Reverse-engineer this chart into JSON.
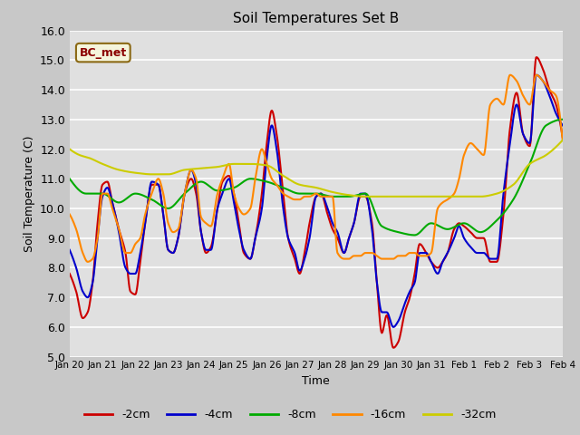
{
  "title": "Soil Temperatures Set B",
  "xlabel": "Time",
  "ylabel": "Soil Temperature (C)",
  "ylim": [
    5.0,
    16.0
  ],
  "yticks": [
    5.0,
    6.0,
    7.0,
    8.0,
    9.0,
    10.0,
    11.0,
    12.0,
    13.0,
    14.0,
    15.0,
    16.0
  ],
  "xtick_labels": [
    "Jan 20",
    "Jan 21",
    "Jan 22",
    "Jan 23",
    "Jan 24",
    "Jan 25",
    "Jan 26",
    "Jan 27",
    "Jan 28",
    "Jan 29",
    "Jan 30",
    "Jan 31",
    "Feb 1",
    "Feb 2",
    "Feb 3",
    "Feb 4"
  ],
  "annotation_text": "BC_met",
  "fig_bg": "#c8c8c8",
  "plot_bg": "#e0e0e0",
  "grid_color": "#ffffff",
  "series": {
    "neg2cm": {
      "color": "#cc0000",
      "label": "-2cm",
      "x": [
        0.0,
        0.2,
        0.4,
        0.55,
        0.7,
        0.85,
        1.0,
        1.15,
        1.3,
        1.5,
        1.7,
        1.85,
        2.0,
        2.15,
        2.3,
        2.5,
        2.7,
        2.85,
        3.0,
        3.15,
        3.3,
        3.5,
        3.7,
        3.85,
        4.0,
        4.15,
        4.3,
        4.5,
        4.65,
        4.85,
        5.0,
        5.15,
        5.3,
        5.5,
        5.65,
        5.85,
        6.0,
        6.15,
        6.3,
        6.5,
        6.65,
        6.85,
        7.0,
        7.15,
        7.3,
        7.5,
        7.65,
        7.85,
        8.0,
        8.15,
        8.35,
        8.5,
        8.65,
        8.85,
        9.0,
        9.2,
        9.35,
        9.5,
        9.65,
        9.85,
        10.0,
        10.2,
        10.35,
        10.5,
        10.65,
        10.85,
        11.0,
        11.2,
        11.35,
        11.5,
        11.7,
        11.85,
        12.0,
        12.2,
        12.4,
        12.6,
        12.8,
        13.0,
        13.2,
        13.4,
        13.6,
        13.8,
        14.0,
        14.2,
        14.4,
        14.6,
        14.8,
        15.0
      ],
      "y": [
        7.8,
        7.2,
        6.3,
        6.5,
        7.5,
        9.5,
        10.8,
        10.9,
        10.2,
        9.3,
        8.5,
        7.2,
        7.1,
        8.2,
        9.5,
        10.8,
        10.8,
        9.8,
        8.6,
        8.5,
        9.0,
        10.5,
        11.0,
        10.5,
        9.2,
        8.5,
        8.7,
        10.0,
        10.9,
        11.1,
        10.5,
        9.5,
        8.5,
        8.3,
        9.0,
        10.5,
        12.2,
        13.3,
        12.5,
        10.5,
        9.0,
        8.3,
        7.8,
        8.5,
        9.5,
        10.4,
        10.5,
        9.8,
        9.3,
        9.0,
        8.5,
        9.0,
        9.5,
        10.4,
        10.4,
        9.5,
        7.5,
        5.8,
        6.4,
        5.3,
        5.5,
        6.5,
        7.0,
        7.8,
        8.8,
        8.5,
        8.2,
        8.0,
        8.2,
        8.5,
        9.3,
        9.5,
        9.4,
        9.2,
        9.0,
        9.0,
        8.2,
        8.2,
        9.8,
        12.7,
        13.9,
        12.5,
        12.1,
        15.1,
        14.7,
        14.0,
        13.5,
        12.4
      ]
    },
    "neg4cm": {
      "color": "#0000cc",
      "label": "-4cm",
      "x": [
        0.0,
        0.2,
        0.4,
        0.55,
        0.7,
        0.85,
        1.0,
        1.15,
        1.3,
        1.5,
        1.7,
        1.85,
        2.0,
        2.15,
        2.3,
        2.5,
        2.7,
        2.85,
        3.0,
        3.15,
        3.3,
        3.5,
        3.7,
        3.85,
        4.0,
        4.15,
        4.3,
        4.5,
        4.65,
        4.85,
        5.0,
        5.15,
        5.3,
        5.5,
        5.65,
        5.85,
        6.0,
        6.15,
        6.3,
        6.5,
        6.65,
        6.85,
        7.0,
        7.15,
        7.3,
        7.5,
        7.65,
        7.85,
        8.0,
        8.15,
        8.35,
        8.5,
        8.65,
        8.85,
        9.0,
        9.2,
        9.35,
        9.5,
        9.65,
        9.85,
        10.0,
        10.2,
        10.35,
        10.5,
        10.65,
        10.85,
        11.0,
        11.2,
        11.35,
        11.5,
        11.7,
        11.85,
        12.0,
        12.2,
        12.4,
        12.6,
        12.8,
        13.0,
        13.2,
        13.4,
        13.6,
        13.8,
        14.0,
        14.2,
        14.4,
        14.6,
        14.8,
        15.0
      ],
      "y": [
        8.6,
        8.0,
        7.2,
        7.0,
        7.5,
        9.0,
        10.4,
        10.7,
        10.2,
        9.2,
        8.0,
        7.8,
        7.8,
        8.5,
        9.5,
        10.9,
        10.8,
        9.8,
        8.6,
        8.5,
        9.0,
        10.5,
        11.3,
        10.8,
        9.2,
        8.6,
        8.6,
        10.0,
        10.5,
        11.0,
        10.2,
        9.3,
        8.6,
        8.3,
        9.0,
        10.0,
        11.7,
        12.8,
        12.0,
        10.0,
        9.0,
        8.5,
        7.9,
        8.3,
        9.0,
        10.4,
        10.5,
        10.0,
        9.5,
        9.2,
        8.5,
        9.0,
        9.5,
        10.5,
        10.5,
        9.3,
        7.5,
        6.5,
        6.5,
        6.0,
        6.2,
        6.8,
        7.2,
        7.5,
        8.5,
        8.5,
        8.2,
        7.8,
        8.2,
        8.5,
        9.0,
        9.4,
        9.0,
        8.7,
        8.5,
        8.5,
        8.3,
        8.3,
        10.5,
        12.2,
        13.5,
        12.5,
        12.2,
        14.5,
        14.3,
        13.8,
        13.2,
        12.8
      ]
    },
    "neg8cm": {
      "color": "#00aa00",
      "label": "-8cm",
      "x": [
        0.0,
        0.5,
        1.0,
        1.5,
        2.0,
        2.5,
        3.0,
        3.5,
        4.0,
        4.5,
        5.0,
        5.5,
        6.0,
        6.5,
        7.0,
        7.5,
        8.0,
        8.5,
        9.0,
        9.5,
        10.0,
        10.5,
        11.0,
        11.5,
        12.0,
        12.5,
        13.0,
        13.5,
        14.0,
        14.5,
        15.0
      ],
      "y": [
        11.0,
        10.5,
        10.5,
        10.2,
        10.5,
        10.3,
        10.0,
        10.5,
        10.9,
        10.6,
        10.7,
        11.0,
        10.9,
        10.7,
        10.5,
        10.5,
        10.4,
        10.4,
        10.5,
        9.4,
        9.2,
        9.1,
        9.5,
        9.3,
        9.5,
        9.2,
        9.6,
        10.3,
        11.5,
        12.8,
        13.0
      ]
    },
    "neg16cm": {
      "color": "#ff8800",
      "label": "-16cm",
      "x": [
        0.0,
        0.2,
        0.4,
        0.55,
        0.7,
        0.85,
        1.0,
        1.15,
        1.3,
        1.5,
        1.7,
        1.85,
        2.0,
        2.15,
        2.3,
        2.5,
        2.7,
        2.85,
        3.0,
        3.15,
        3.3,
        3.5,
        3.7,
        3.85,
        4.0,
        4.15,
        4.3,
        4.5,
        4.65,
        4.85,
        5.0,
        5.15,
        5.3,
        5.5,
        5.65,
        5.85,
        6.0,
        6.15,
        6.3,
        6.5,
        6.65,
        6.85,
        7.0,
        7.15,
        7.3,
        7.5,
        7.65,
        7.85,
        8.0,
        8.15,
        8.35,
        8.5,
        8.65,
        8.85,
        9.0,
        9.2,
        9.35,
        9.5,
        9.65,
        9.85,
        10.0,
        10.2,
        10.35,
        10.5,
        10.65,
        10.85,
        11.0,
        11.2,
        11.35,
        11.5,
        11.7,
        11.85,
        12.0,
        12.2,
        12.4,
        12.6,
        12.8,
        13.0,
        13.2,
        13.4,
        13.6,
        13.8,
        14.0,
        14.2,
        14.4,
        14.6,
        14.8,
        15.0
      ],
      "y": [
        9.8,
        9.3,
        8.5,
        8.2,
        8.3,
        9.0,
        10.5,
        10.5,
        10.0,
        9.3,
        8.5,
        8.5,
        8.8,
        9.0,
        9.8,
        10.5,
        11.0,
        10.5,
        9.5,
        9.2,
        9.3,
        10.5,
        11.3,
        11.0,
        9.7,
        9.5,
        9.4,
        10.5,
        11.0,
        11.5,
        10.5,
        10.0,
        9.8,
        10.0,
        11.0,
        12.0,
        11.5,
        11.0,
        10.8,
        10.5,
        10.4,
        10.3,
        10.3,
        10.4,
        10.4,
        10.5,
        10.4,
        10.4,
        10.4,
        8.5,
        8.3,
        8.3,
        8.4,
        8.4,
        8.5,
        8.5,
        8.4,
        8.3,
        8.3,
        8.3,
        8.4,
        8.4,
        8.5,
        8.5,
        8.4,
        8.4,
        8.5,
        10.0,
        10.2,
        10.3,
        10.5,
        11.0,
        11.8,
        12.2,
        12.0,
        11.8,
        13.5,
        13.7,
        13.5,
        14.5,
        14.3,
        13.8,
        13.5,
        14.5,
        14.3,
        14.0,
        13.8,
        12.3
      ]
    },
    "neg32cm": {
      "color": "#cccc00",
      "label": "-32cm",
      "x": [
        0.0,
        0.3,
        0.6,
        1.0,
        1.5,
        2.0,
        2.5,
        3.0,
        3.5,
        4.0,
        4.5,
        5.0,
        5.5,
        6.0,
        6.5,
        7.0,
        7.5,
        8.0,
        8.5,
        9.0,
        9.5,
        10.0,
        10.5,
        11.0,
        11.5,
        12.0,
        12.5,
        13.0,
        13.5,
        14.0,
        14.5,
        15.0
      ],
      "y": [
        12.0,
        11.8,
        11.7,
        11.5,
        11.3,
        11.2,
        11.15,
        11.15,
        11.3,
        11.35,
        11.4,
        11.5,
        11.5,
        11.45,
        11.1,
        10.8,
        10.7,
        10.55,
        10.45,
        10.4,
        10.4,
        10.4,
        10.4,
        10.4,
        10.4,
        10.4,
        10.4,
        10.5,
        10.8,
        11.5,
        11.8,
        12.3
      ]
    }
  }
}
